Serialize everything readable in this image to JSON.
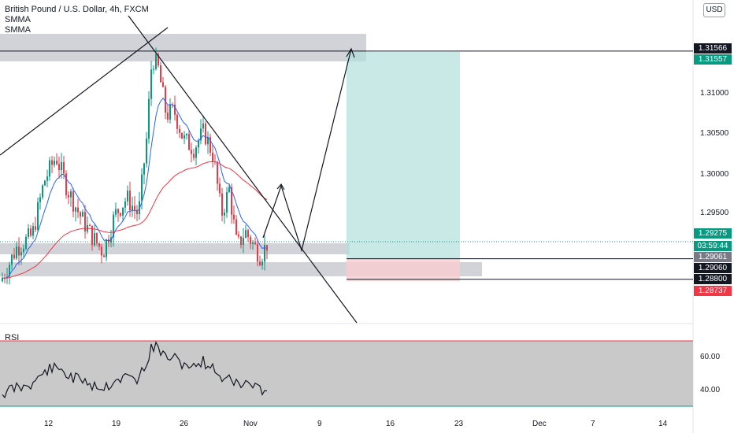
{
  "legend": {
    "title": "British Pound / U.S. Dollar, 4h, FXCM",
    "indicator1": "SMMA",
    "indicator2": "SMMA"
  },
  "currency_button": "USD",
  "rsi": {
    "label": "RSI",
    "ticks": [
      "60.00",
      "40.00"
    ]
  },
  "price_tags": [
    {
      "text": "1.31566",
      "bg": "#131722"
    },
    {
      "text": "1.31557",
      "bg": "#089981"
    },
    {
      "text": "1.29275",
      "bg": "#089981"
    },
    {
      "text": "03:59:44",
      "bg": "#089981"
    },
    {
      "text": "1.29061",
      "bg": "#787b86"
    },
    {
      "text": "1.29060",
      "bg": "#131722"
    },
    {
      "text": "1.28800",
      "bg": "#131722"
    },
    {
      "text": "1.28737",
      "bg": "#f23645"
    }
  ],
  "colors": {
    "up": "#089981",
    "down": "#f23645",
    "smma_fast": "#2962ff",
    "smma_slow": "#f23645",
    "zone": "#b2b5be",
    "target": "#b2dfdb",
    "stop": "#f8cdd1",
    "rsi_band": "#c9c9c9"
  },
  "chart_data": {
    "type": "candlestick",
    "title": "British Pound / U.S. Dollar, 4h, FXCM",
    "y_axis_ticks": [
      "1.31000",
      "1.30500",
      "1.30000",
      "1.29500"
    ],
    "x_axis_ticks": [
      "12",
      "19",
      "26",
      "Nov",
      "9",
      "16",
      "23",
      "Dec",
      "7",
      "14"
    ],
    "ylim": [
      1.283,
      1.3218
    ],
    "current_price": 1.29275,
    "levels": {
      "resistance_line": 1.31566,
      "target": 1.31557,
      "entry": 1.29061,
      "support_line": 1.2906,
      "stop": 1.288,
      "low_marker": 1.28737
    },
    "rsi_levels": [
      60.0,
      40.0
    ]
  }
}
